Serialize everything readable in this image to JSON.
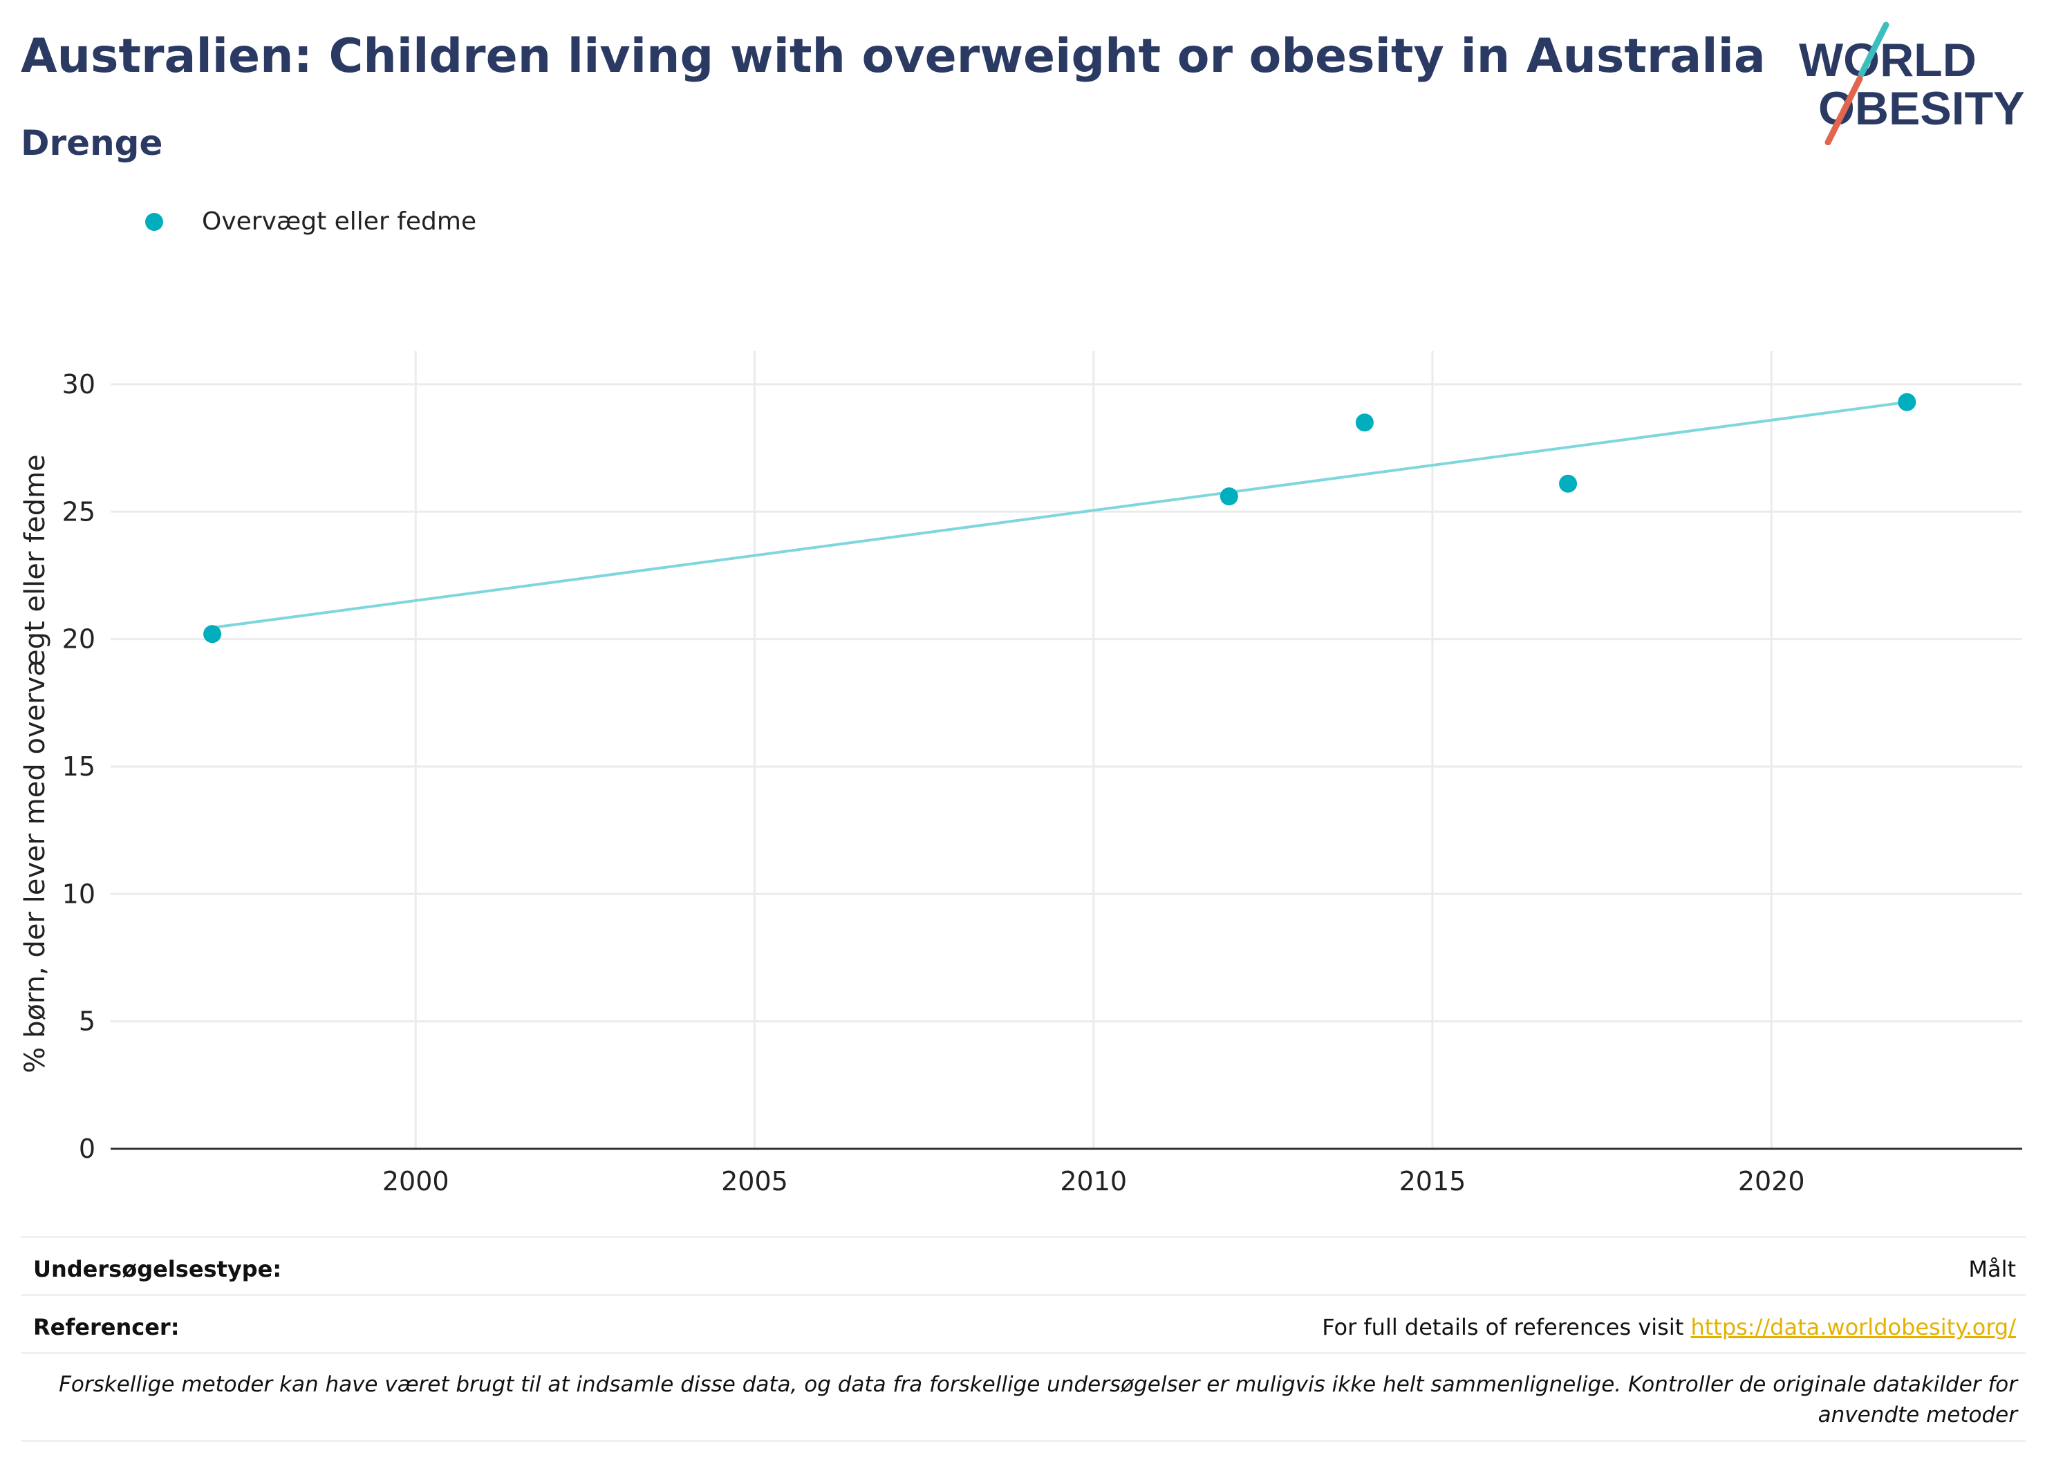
{
  "header": {
    "title": "Australien: Children living with overweight or obesity in Australia",
    "subtitle": "Drenge"
  },
  "logo": {
    "line1": "WORLD",
    "line2": "OBESITY",
    "accent_teal": "#3dbdbd",
    "accent_red": "#e2654e",
    "text_color": "#2b3a63"
  },
  "chart_data": {
    "type": "scatter",
    "title": "",
    "xlabel": "",
    "ylabel": "% børn, der lever med overvægt eller fedme",
    "xlim": [
      1995.5,
      2023.7
    ],
    "ylim": [
      0,
      31.3
    ],
    "xticks": [
      2000,
      2005,
      2010,
      2015,
      2020
    ],
    "yticks": [
      0,
      5,
      10,
      15,
      20,
      25,
      30
    ],
    "grid": true,
    "legend_position": "top-left",
    "series": [
      {
        "name": "Overvægt eller fedme",
        "color": "#00aebd",
        "points": [
          {
            "x": 1997,
            "y": 20.2
          },
          {
            "x": 2012,
            "y": 25.6
          },
          {
            "x": 2014,
            "y": 28.5
          },
          {
            "x": 2017,
            "y": 26.1
          },
          {
            "x": 2022,
            "y": 29.3
          }
        ],
        "trendline": {
          "color": "#7fd6dd",
          "x": [
            1997,
            2022
          ],
          "y": [
            20.45,
            29.3
          ]
        }
      }
    ]
  },
  "meta": {
    "survey_label": "Undersøgelsestype:",
    "survey_value": "Målt",
    "references_label": "Referencer:",
    "references_text": "For full details of references visit ",
    "references_link": "https://data.worldobesity.org/",
    "note": "Forskellige metoder kan have været brugt til at indsamle disse data, og data fra forskellige undersøgelser er muligvis ikke helt sammenlignelige. Kontroller de originale datakilder for anvendte metoder"
  }
}
